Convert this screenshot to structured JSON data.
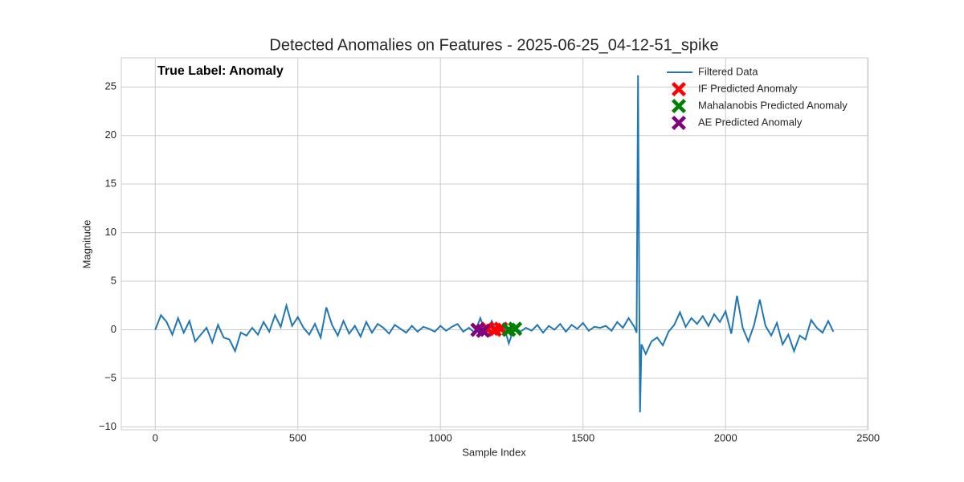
{
  "chart_data": {
    "type": "line",
    "title": "Detected Anomalies on Features - 2025-06-25_04-12-51_spike",
    "xlabel": "Sample Index",
    "ylabel": "Magnitude",
    "annotation": "True Label: Anomaly",
    "xlim": [
      -119,
      2498
    ],
    "ylim": [
      -10.3,
      28
    ],
    "xticks": [
      0,
      500,
      1000,
      1500,
      2000,
      2500
    ],
    "yticks": [
      {
        "value": -10,
        "label": "−10"
      },
      {
        "value": -5,
        "label": "−5"
      },
      0,
      5,
      10,
      15,
      20,
      25
    ],
    "grid": true,
    "legend": "upper right",
    "series": [
      {
        "name": "Filtered Data",
        "kind": "line",
        "color": "#1f77b4",
        "x": [
          0,
          20,
          40,
          60,
          80,
          100,
          120,
          140,
          160,
          180,
          200,
          220,
          240,
          260,
          280,
          300,
          320,
          340,
          360,
          380,
          400,
          420,
          440,
          460,
          480,
          500,
          520,
          540,
          560,
          580,
          600,
          620,
          640,
          660,
          680,
          700,
          720,
          740,
          760,
          780,
          800,
          820,
          840,
          860,
          880,
          900,
          920,
          940,
          960,
          980,
          1000,
          1020,
          1040,
          1060,
          1080,
          1100,
          1120,
          1140,
          1160,
          1180,
          1200,
          1220,
          1240,
          1260,
          1280,
          1300,
          1320,
          1340,
          1360,
          1380,
          1400,
          1420,
          1440,
          1460,
          1480,
          1500,
          1520,
          1540,
          1560,
          1580,
          1600,
          1620,
          1640,
          1660,
          1680,
          1688,
          1693,
          1697,
          1700,
          1705,
          1720,
          1740,
          1760,
          1780,
          1800,
          1820,
          1840,
          1860,
          1880,
          1900,
          1920,
          1940,
          1960,
          1980,
          2000,
          2020,
          2040,
          2060,
          2080,
          2100,
          2120,
          2140,
          2160,
          2180,
          2200,
          2220,
          2240,
          2260,
          2280,
          2300,
          2320,
          2340,
          2360,
          2378
        ],
        "values": [
          0,
          1.5,
          0.8,
          -0.5,
          1.2,
          -0.3,
          0.9,
          -1.2,
          -0.5,
          0.2,
          -1.3,
          0.5,
          -0.8,
          -1.0,
          -2.2,
          -0.3,
          -0.6,
          0.2,
          -0.5,
          0.8,
          -0.2,
          1.5,
          0.3,
          2.5,
          0.4,
          1.3,
          0.2,
          -0.5,
          0.6,
          -0.8,
          2.3,
          0.5,
          -0.6,
          0.9,
          -0.4,
          0.4,
          -0.7,
          0.8,
          -0.3,
          0.6,
          0.2,
          -0.4,
          0.5,
          0.1,
          -0.3,
          0.4,
          -0.2,
          0.3,
          0.1,
          -0.2,
          0.4,
          -0.1,
          0.3,
          0.6,
          -0.2,
          0.2,
          -0.3,
          1.2,
          -0.5,
          0.9,
          -0.4,
          0.6,
          -1.4,
          0.3,
          -0.2,
          0.2,
          -0.1,
          0.5,
          -0.3,
          0.4,
          0.0,
          0.6,
          -0.2,
          0.5,
          0.1,
          0.7,
          -0.1,
          0.3,
          0.2,
          0.4,
          -0.1,
          0.8,
          0.2,
          1.2,
          0.3,
          -0.3,
          26.2,
          5,
          -8.5,
          -1.5,
          -2.5,
          -1.2,
          -0.8,
          -1.6,
          -0.2,
          0.5,
          1.8,
          0.3,
          1.2,
          0.6,
          1.4,
          0.4,
          1.6,
          0.8,
          1.9,
          -0.4,
          3.5,
          0.2,
          -1.2,
          0.5,
          3.1,
          0.4,
          -0.6,
          0.7,
          -1.5,
          -0.5,
          -2.2,
          -0.6,
          -1.0,
          1.0,
          0.2,
          -0.3,
          0.9,
          -0.2
        ]
      },
      {
        "name": "IF Predicted Anomaly",
        "kind": "scatter",
        "color": "#ff0000",
        "x": [
          1165,
          1190,
          1212
        ],
        "values": [
          0.1,
          0.0,
          0.1
        ]
      },
      {
        "name": "Mahalanobis Predicted Anomaly",
        "kind": "scatter",
        "color": "#008000",
        "x": [
          1240,
          1262
        ],
        "values": [
          0.0,
          0.1
        ]
      },
      {
        "name": "AE Predicted Anomaly",
        "kind": "scatter",
        "color": "#800080",
        "x": [
          1130,
          1150
        ],
        "values": [
          0.0,
          -0.1
        ]
      }
    ]
  }
}
